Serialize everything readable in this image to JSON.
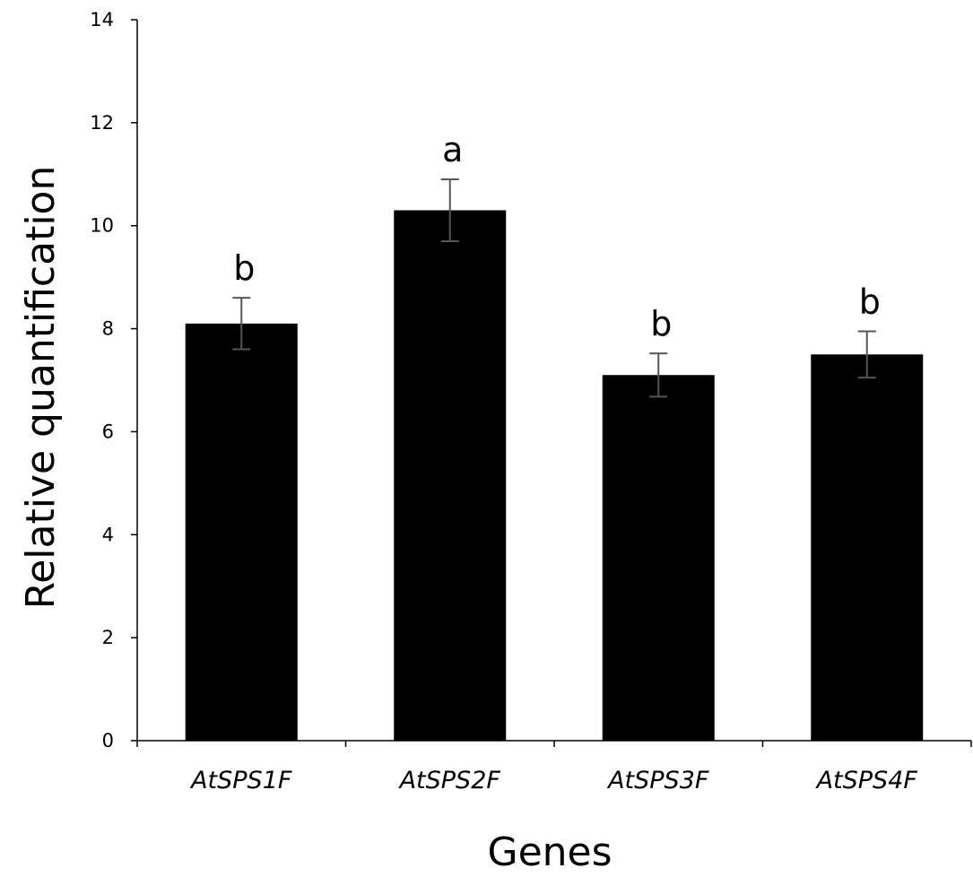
{
  "chart_data": {
    "type": "bar",
    "title": "",
    "xlabel": "Genes",
    "ylabel": "Relative quantification",
    "categories": [
      "AtSPS1F",
      "AtSPS2F",
      "AtSPS3F",
      "AtSPS4F"
    ],
    "values": [
      8.1,
      10.3,
      7.1,
      7.5
    ],
    "errors": [
      0.5,
      0.6,
      0.42,
      0.45
    ],
    "significance": [
      "b",
      "a",
      "b",
      "b"
    ],
    "ylim": [
      0,
      14
    ],
    "yticks": [
      0,
      2,
      4,
      6,
      8,
      10,
      12,
      14
    ],
    "grid": false,
    "bar_color": "#000000"
  }
}
